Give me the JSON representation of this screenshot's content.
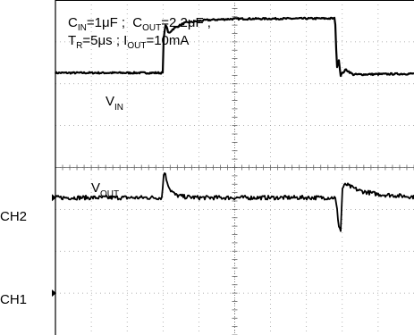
{
  "chart_data": {
    "type": "line",
    "title": "",
    "conditions": {
      "line1": {
        "cin_sym": "C",
        "cin_sub": "IN",
        "cin_val": "=1μF ;",
        "cout_sym": "C",
        "cout_sub": "OUT",
        "cout_val": "=2.2μF ;"
      },
      "line2": {
        "tr_sym": "T",
        "tr_sub": "R",
        "tr_val": "=5μs ;",
        "iout_sym": "I",
        "iout_sub": "OUT",
        "iout_val": "=10mA"
      }
    },
    "trace_labels": {
      "vin": {
        "sym": "V",
        "sub": "IN"
      },
      "vout": {
        "sym": "V",
        "sub": "OUT"
      }
    },
    "channel_markers": [
      "CH2",
      "CH1"
    ],
    "grid": true,
    "divisions": {
      "x": 10,
      "y": 8
    },
    "series": [
      {
        "name": "VIN",
        "x": [
          0,
          3.0,
          3.02,
          3.08,
          3.15,
          3.3,
          3.6,
          4.2,
          5.0,
          7.8,
          7.85,
          7.9,
          7.95,
          8.1,
          8.3,
          10
        ],
        "y": [
          6.26,
          6.26,
          7.16,
          7.43,
          7.2,
          7.32,
          7.45,
          7.52,
          7.55,
          7.56,
          6.35,
          6.62,
          6.2,
          6.34,
          6.22,
          6.24
        ]
      },
      {
        "name": "VOUT",
        "x": [
          0,
          2.97,
          3.03,
          3.1,
          3.2,
          3.35,
          3.6,
          4.0,
          7.8,
          7.85,
          7.9,
          7.96,
          8.0,
          8.1,
          8.2,
          8.5,
          9.0,
          10
        ],
        "y": [
          3.28,
          3.28,
          3.95,
          3.7,
          3.47,
          3.34,
          3.3,
          3.28,
          3.28,
          3.02,
          2.62,
          2.48,
          3.5,
          3.6,
          3.55,
          3.44,
          3.36,
          3.3
        ]
      }
    ]
  }
}
